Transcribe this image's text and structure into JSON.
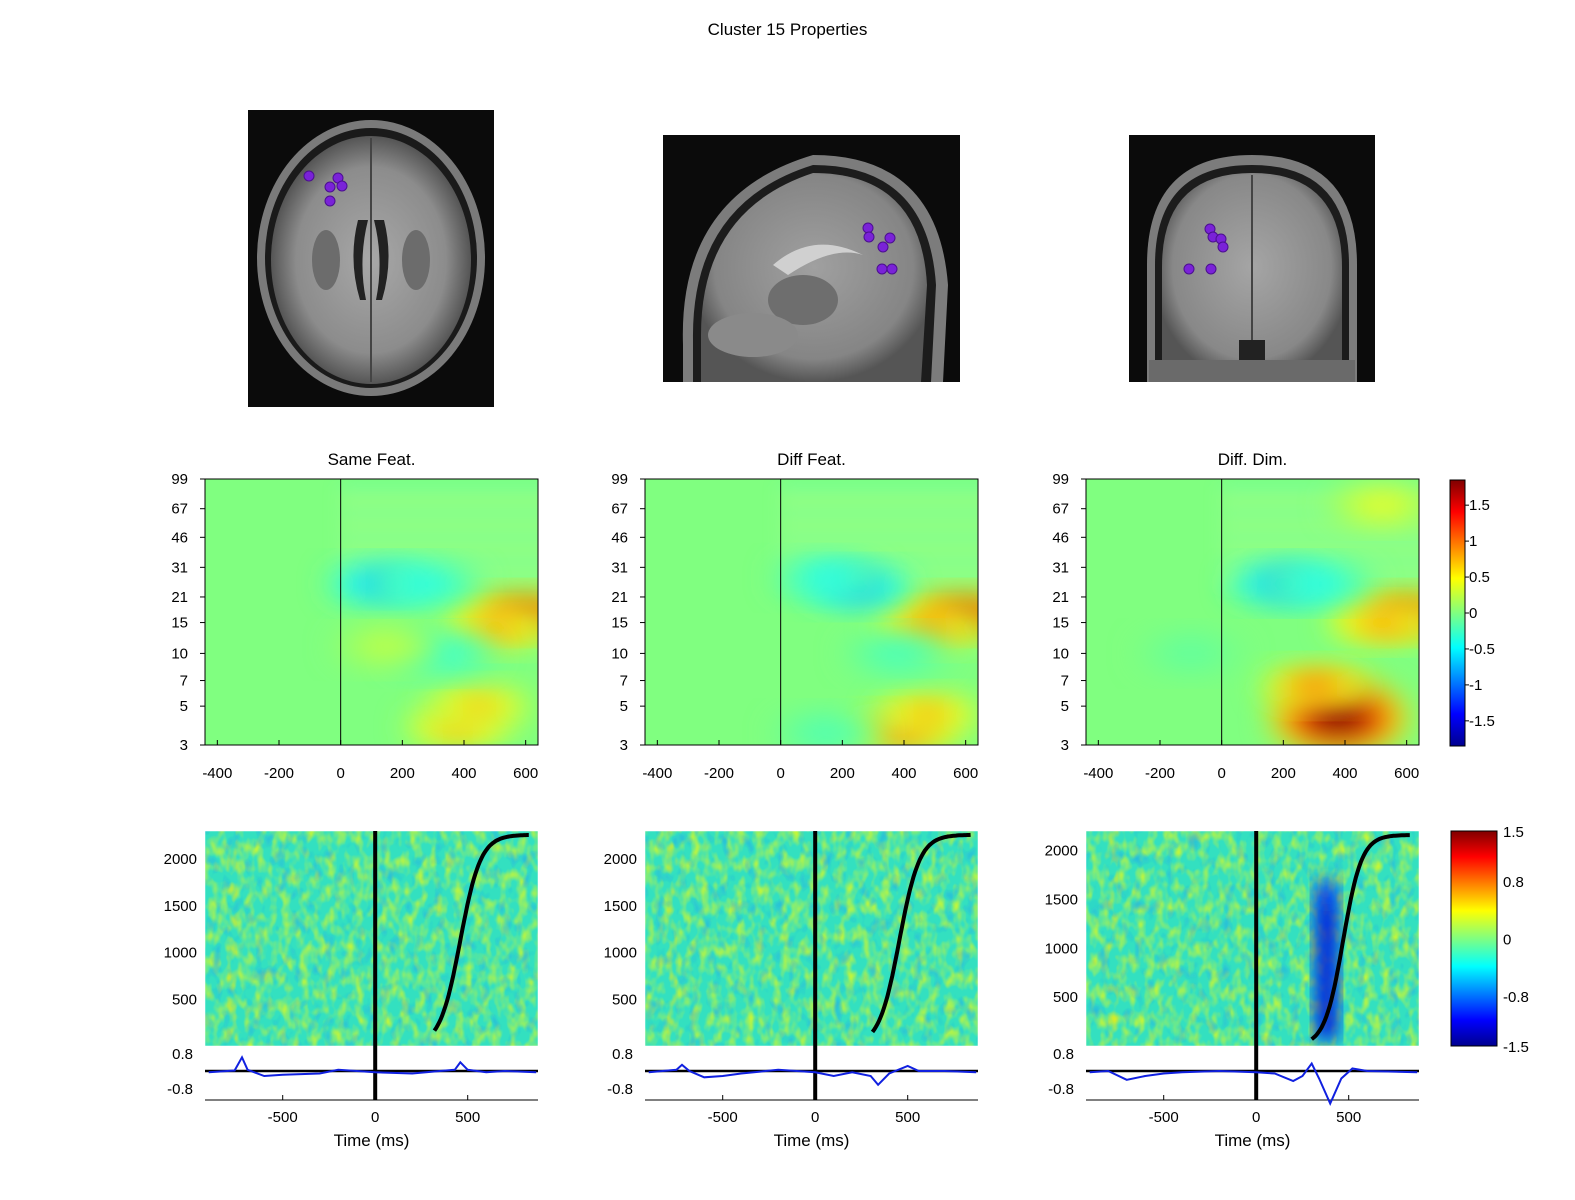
{
  "figure": {
    "title": "Cluster 15 Properties"
  },
  "colors": {
    "dipole": "#7a22d8",
    "jet": [
      "#00008f",
      "#0000ff",
      "#00ffff",
      "#ffff00",
      "#ff0000",
      "#800000"
    ]
  },
  "chart_data": [
    {
      "type": "heatmap",
      "id": "ersp",
      "panels": [
        {
          "title": "Same Feat.",
          "blobs": [
            {
              "t": 600,
              "f": 17,
              "v": 1.8
            },
            {
              "t": 500,
              "f": 14,
              "v": 1.0
            },
            {
              "t": 380,
              "f": 3.8,
              "v": 0.9
            },
            {
              "t": 450,
              "f": 5,
              "v": 0.8
            },
            {
              "t": 130,
              "f": 25,
              "v": -0.9
            },
            {
              "t": 280,
              "f": 25,
              "v": -0.5
            },
            {
              "t": 330,
              "f": 10,
              "v": -0.4
            },
            {
              "t": 150,
              "f": 11,
              "v": 0.3
            }
          ]
        },
        {
          "title": "Diff Feat.",
          "blobs": [
            {
              "t": 600,
              "f": 17,
              "v": 1.9
            },
            {
              "t": 480,
              "f": 14,
              "v": 1.1
            },
            {
              "t": 400,
              "f": 3.6,
              "v": 1.3
            },
            {
              "t": 480,
              "f": 4.5,
              "v": 0.9
            },
            {
              "t": 250,
              "f": 24,
              "v": -1.0
            },
            {
              "t": 150,
              "f": 27,
              "v": -0.5
            },
            {
              "t": 380,
              "f": 10,
              "v": -0.3
            },
            {
              "t": 150,
              "f": 3.5,
              "v": -0.25
            }
          ]
        },
        {
          "title": "Diff. Dim.",
          "blobs": [
            {
              "t": 600,
              "f": 17,
              "v": 1.7
            },
            {
              "t": 520,
              "f": 15,
              "v": 1.0
            },
            {
              "t": 380,
              "f": 4.3,
              "v": 2.5
            },
            {
              "t": 300,
              "f": 6.5,
              "v": 1.2
            },
            {
              "t": 200,
              "f": 25,
              "v": -1.0
            },
            {
              "t": 320,
              "f": 25,
              "v": -0.5
            },
            {
              "t": 520,
              "f": 70,
              "v": 0.5
            },
            {
              "t": -100,
              "f": 10,
              "v": -0.15
            }
          ]
        }
      ],
      "x_ticks": [
        -400,
        -200,
        0,
        200,
        400,
        600
      ],
      "y_ticks": [
        3,
        5,
        7,
        10,
        15,
        21,
        31,
        46,
        67,
        99
      ],
      "xlim": [
        -440,
        640
      ],
      "ylim": [
        3,
        99
      ],
      "y_scale": "log",
      "colorbar": {
        "ticks": [
          "1.5",
          "1",
          "0.5",
          "0",
          "-0.5",
          "-1",
          "-1.5"
        ],
        "range": [
          -1.85,
          1.85
        ]
      }
    },
    {
      "type": "heatmap",
      "id": "erp-image",
      "panels": [
        {
          "rt_start": 320,
          "rt_end": 830,
          "rt_mid": 460,
          "rt_spread": 55,
          "band": null,
          "erp": [
            [
              -900,
              -0.05
            ],
            [
              -760,
              0.02
            ],
            [
              -720,
              0.55
            ],
            [
              -690,
              0.05
            ],
            [
              -600,
              -0.2
            ],
            [
              -500,
              -0.15
            ],
            [
              -300,
              -0.1
            ],
            [
              -200,
              0.05
            ],
            [
              -100,
              0.0
            ],
            [
              0,
              -0.05
            ],
            [
              200,
              -0.1
            ],
            [
              350,
              0.0
            ],
            [
              430,
              0.05
            ],
            [
              460,
              0.35
            ],
            [
              500,
              0.05
            ],
            [
              600,
              -0.05
            ],
            [
              700,
              0.0
            ],
            [
              870,
              -0.05
            ]
          ]
        },
        {
          "rt_start": 310,
          "rt_end": 840,
          "rt_mid": 455,
          "rt_spread": 55,
          "band": null,
          "erp": [
            [
              -900,
              -0.05
            ],
            [
              -750,
              0.05
            ],
            [
              -720,
              0.25
            ],
            [
              -680,
              0.0
            ],
            [
              -600,
              -0.25
            ],
            [
              -500,
              -0.2
            ],
            [
              -400,
              -0.1
            ],
            [
              -200,
              0.05
            ],
            [
              -100,
              0.0
            ],
            [
              0,
              -0.05
            ],
            [
              100,
              -0.2
            ],
            [
              200,
              -0.05
            ],
            [
              300,
              -0.2
            ],
            [
              340,
              -0.55
            ],
            [
              400,
              -0.1
            ],
            [
              500,
              0.2
            ],
            [
              560,
              0.0
            ],
            [
              700,
              0.0
            ],
            [
              870,
              -0.05
            ]
          ]
        },
        {
          "rt_start": 300,
          "rt_end": 830,
          "rt_mid": 470,
          "rt_spread": 50,
          "band": {
            "t": 380,
            "v": -1.3
          },
          "erp": [
            [
              -900,
              -0.05
            ],
            [
              -800,
              0.0
            ],
            [
              -700,
              -0.35
            ],
            [
              -600,
              -0.2
            ],
            [
              -500,
              -0.1
            ],
            [
              -400,
              -0.05
            ],
            [
              -200,
              0.0
            ],
            [
              0,
              -0.05
            ],
            [
              100,
              -0.1
            ],
            [
              200,
              -0.4
            ],
            [
              250,
              -0.2
            ],
            [
              300,
              0.3
            ],
            [
              340,
              -0.3
            ],
            [
              400,
              -1.3
            ],
            [
              460,
              -0.3
            ],
            [
              520,
              0.1
            ],
            [
              600,
              0.0
            ],
            [
              870,
              -0.05
            ]
          ]
        }
      ],
      "x_ticks": [
        -500,
        0,
        500
      ],
      "xlabel": "Time (ms)",
      "ylim_panel1": [
        0,
        2300
      ],
      "ylim_panel2": [
        0,
        2300
      ],
      "ylim_panel3": [
        0,
        2200
      ],
      "y_ticks": [
        500,
        1000,
        1500,
        2000
      ],
      "xlim": [
        -920,
        880
      ],
      "erp_ylim": [
        -0.8,
        0.8
      ],
      "erp_ticks": [
        "0.8",
        "-0.8"
      ],
      "colorbar": {
        "ticks": [
          "1.5",
          "0.8",
          "0",
          "-0.8",
          "-1.5"
        ],
        "range": [
          -1.5,
          1.5
        ]
      }
    }
  ]
}
